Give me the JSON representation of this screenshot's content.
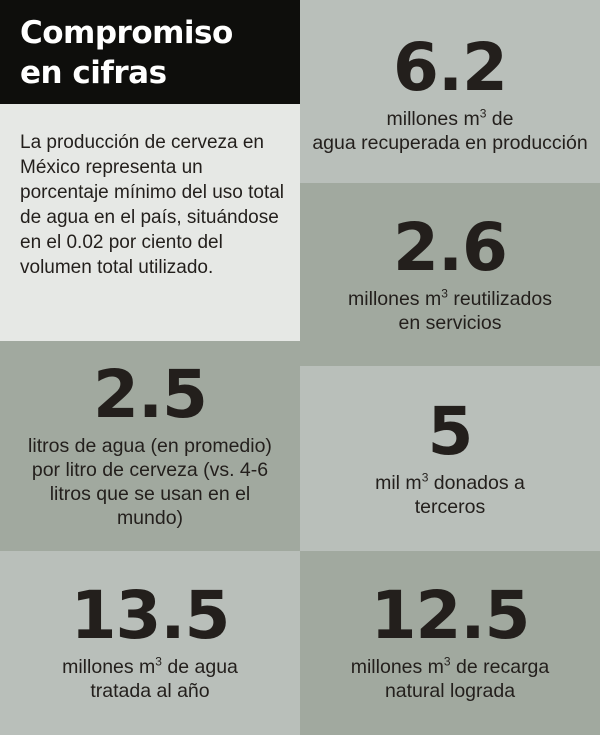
{
  "title": "Compromiso\nen cifras",
  "intro": "La producción de cerveza en México representa un porcentaje mínimo del uso total de agua en el país, situándose en el 0.02 por ciento del volumen total utilizado.",
  "stats": [
    {
      "value": "6.2",
      "pre": "millones m",
      "sup": "3",
      "post": " de",
      "rest": "agua recuperada en producción"
    },
    {
      "value": "2.6",
      "pre": "millones m",
      "sup": "3",
      "post": " reutilizados",
      "rest": "en servicios"
    },
    {
      "value": "2.5",
      "pre": "litros de agua (en promedio) por litro de cerveza (vs. 4-6 litros que se usan en el mundo)",
      "sup": "",
      "post": "",
      "rest": ""
    },
    {
      "value": "5",
      "pre": "mil m",
      "sup": "3",
      "post": " donados a",
      "rest": "terceros"
    },
    {
      "value": "13.5",
      "pre": "millones m",
      "sup": "3",
      "post": " de agua",
      "rest": "tratada al año"
    },
    {
      "value": "12.5",
      "pre": "millones m",
      "sup": "3",
      "post": " de recarga",
      "rest": "natural lograda"
    }
  ],
  "colors": {
    "title_bg": "#0e0e0c",
    "intro_bg": "#e6e8e5",
    "tile_light": "#b9bfba",
    "tile_dark": "#a1a99f",
    "text": "#231f1c"
  }
}
